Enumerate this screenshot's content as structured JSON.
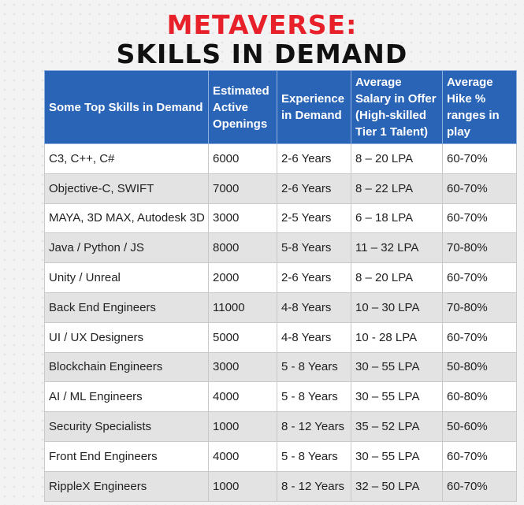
{
  "title": {
    "line1": "METAVERSE:",
    "line2": "SKILLS IN DEMAND"
  },
  "table": {
    "headers": [
      "Some Top Skills in Demand",
      "Estimated Active Openings",
      "Experience in Demand",
      "Average Salary in Offer (High-skilled Tier 1 Talent)",
      "Average Hike % ranges in play"
    ],
    "rows": [
      [
        "C3, C++, C#",
        "6000",
        "2-6 Years",
        "8 – 20 LPA",
        "60-70%"
      ],
      [
        "Objective-C, SWIFT",
        "7000",
        "2-6 Years",
        "8 – 22 LPA",
        "60-70%"
      ],
      [
        "MAYA, 3D MAX, Autodesk 3D",
        "3000",
        "2-5 Years",
        "6 – 18 LPA",
        "60-70%"
      ],
      [
        "Java / Python / JS",
        "8000",
        "5-8 Years",
        "11 – 32 LPA",
        "70-80%"
      ],
      [
        "Unity / Unreal",
        "2000",
        "2-6 Years",
        "8 – 20 LPA",
        "60-70%"
      ],
      [
        "Back End Engineers",
        "11000",
        "4-8 Years",
        "10 – 30 LPA",
        "70-80%"
      ],
      [
        "UI / UX Designers",
        "5000",
        "4-8 Years",
        "10 - 28 LPA",
        "60-70%"
      ],
      [
        "Blockchain Engineers",
        "3000",
        "5 - 8 Years",
        "30 – 55 LPA",
        "50-80%"
      ],
      [
        "AI / ML Engineers",
        "4000",
        "5 - 8 Years",
        "30 – 55 LPA",
        "60-80%"
      ],
      [
        "Security Specialists",
        "1000",
        "8 - 12 Years",
        "35 – 52 LPA",
        "50-60%"
      ],
      [
        "Front End Engineers",
        "4000",
        "5 - 8 Years",
        "30 – 55 LPA",
        "60-70%"
      ],
      [
        "RippleX Engineers",
        "1000",
        "8 - 12 Years",
        "32 – 50 LPA",
        "60-70%"
      ]
    ]
  }
}
